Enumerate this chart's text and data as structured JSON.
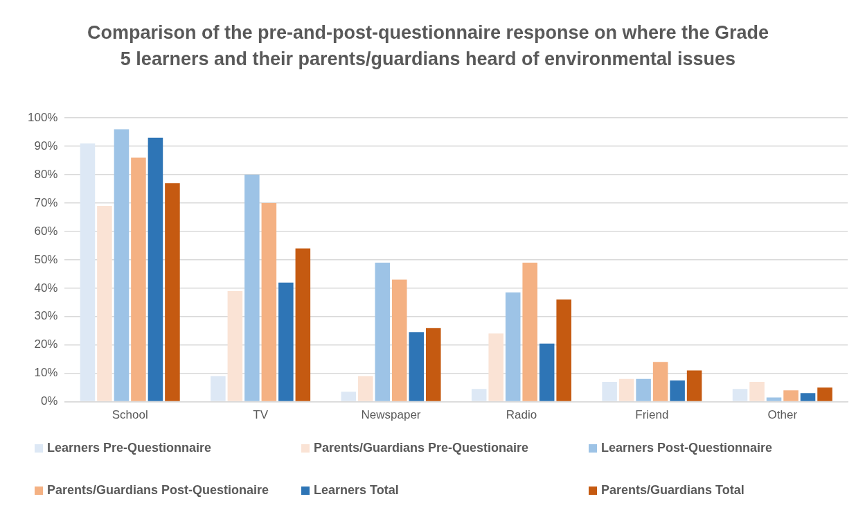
{
  "chart_data": {
    "type": "bar",
    "title": "Comparison of the pre-and-post-questionnaire response on where the Grade 5 learners and their parents/guardians heard of environmental issues",
    "categories": [
      "School",
      "TV",
      "Newspaper",
      "Radio",
      "Friend",
      "Other"
    ],
    "series": [
      {
        "name": "Learners Pre-Questionnaire",
        "color": "#dde8f5",
        "values": [
          91,
          9,
          3.5,
          4.5,
          7,
          4.5
        ]
      },
      {
        "name": "Parents/Guardians Pre-Questionaire",
        "color": "#fae3d5",
        "values": [
          69,
          39,
          9,
          24,
          8,
          7
        ]
      },
      {
        "name": "Learners Post-Questionnaire",
        "color": "#9dc3e6",
        "values": [
          96,
          80,
          49,
          38.5,
          8,
          1.5
        ]
      },
      {
        "name": "Parents/Guardians Post-Questionaire",
        "color": "#f4b183",
        "values": [
          86,
          70,
          43,
          49,
          14,
          4
        ]
      },
      {
        "name": "Learners Total",
        "color": "#2e75b6",
        "values": [
          93,
          42,
          24.5,
          20.5,
          7.5,
          3
        ]
      },
      {
        "name": "Parents/Guardians Total",
        "color": "#c55a11",
        "values": [
          77,
          54,
          26,
          36,
          11,
          5
        ]
      }
    ],
    "ylim": [
      0,
      100
    ],
    "yticks": [
      {
        "value": 0,
        "label": "0%"
      },
      {
        "value": 10,
        "label": "10%"
      },
      {
        "value": 20,
        "label": "20%"
      },
      {
        "value": 30,
        "label": "30%"
      },
      {
        "value": 40,
        "label": "40%"
      },
      {
        "value": 50,
        "label": "50%"
      },
      {
        "value": 60,
        "label": "60%"
      },
      {
        "value": 70,
        "label": "70%"
      },
      {
        "value": 80,
        "label": "80%"
      },
      {
        "value": 90,
        "label": "90%"
      },
      {
        "value": 100,
        "label": "100%"
      }
    ],
    "grid": "y",
    "legend": "bottom"
  }
}
